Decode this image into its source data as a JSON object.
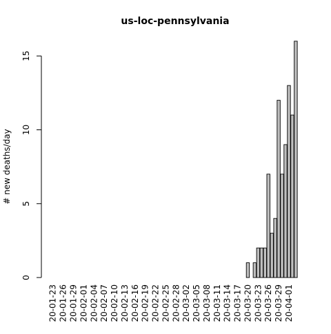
{
  "chart_data": {
    "type": "bar",
    "title": "us-loc-pennsylvania",
    "xlabel": "",
    "ylabel": "# new deaths/day",
    "ylim": [
      0,
      16
    ],
    "yticks": [
      0,
      5,
      10,
      15
    ],
    "grid": false,
    "legend": "none",
    "bar_color": "#bebebe",
    "border_color": "#000000",
    "categories": [
      "20-01-23",
      "20-01-24",
      "20-01-25",
      "20-01-26",
      "20-01-27",
      "20-01-28",
      "20-01-29",
      "20-01-30",
      "20-01-31",
      "20-02-01",
      "20-02-02",
      "20-02-03",
      "20-02-04",
      "20-02-05",
      "20-02-06",
      "20-02-07",
      "20-02-08",
      "20-02-09",
      "20-02-10",
      "20-02-11",
      "20-02-12",
      "20-02-13",
      "20-02-14",
      "20-02-15",
      "20-02-16",
      "20-02-17",
      "20-02-18",
      "20-02-19",
      "20-02-20",
      "20-02-21",
      "20-02-22",
      "20-02-23",
      "20-02-24",
      "20-02-25",
      "20-02-26",
      "20-02-27",
      "20-02-28",
      "20-02-29",
      "20-03-01",
      "20-03-02",
      "20-03-03",
      "20-03-04",
      "20-03-05",
      "20-03-06",
      "20-03-07",
      "20-03-08",
      "20-03-09",
      "20-03-10",
      "20-03-11",
      "20-03-12",
      "20-03-13",
      "20-03-14",
      "20-03-15",
      "20-03-16",
      "20-03-17",
      "20-03-18",
      "20-03-19",
      "20-03-20",
      "20-03-21",
      "20-03-22",
      "20-03-23",
      "20-03-24",
      "20-03-25",
      "20-03-26",
      "20-03-27",
      "20-03-28",
      "20-03-29",
      "20-03-30",
      "20-03-31",
      "20-04-01",
      "20-04-02",
      "20-04-03"
    ],
    "values": [
      0,
      0,
      0,
      0,
      0,
      0,
      0,
      0,
      0,
      0,
      0,
      0,
      0,
      0,
      0,
      0,
      0,
      0,
      0,
      0,
      0,
      0,
      0,
      0,
      0,
      0,
      0,
      0,
      0,
      0,
      0,
      0,
      0,
      0,
      0,
      0,
      0,
      0,
      0,
      0,
      0,
      0,
      0,
      0,
      0,
      0,
      0,
      0,
      0,
      0,
      0,
      0,
      0,
      0,
      0,
      0,
      0,
      1,
      0,
      1,
      2,
      2,
      2,
      7,
      3,
      4,
      12,
      7,
      9,
      13,
      11,
      16
    ],
    "labeled_categories": [
      "20-01-23",
      "20-01-26",
      "20-01-29",
      "20-02-01",
      "20-02-04",
      "20-02-07",
      "20-02-10",
      "20-02-13",
      "20-02-16",
      "20-02-19",
      "20-02-22",
      "20-02-25",
      "20-02-28",
      "20-03-02",
      "20-03-05",
      "20-03-08",
      "20-03-11",
      "20-03-14",
      "20-03-17",
      "20-03-20",
      "20-03-23",
      "20-03-26",
      "20-03-29",
      "20-04-01"
    ]
  }
}
